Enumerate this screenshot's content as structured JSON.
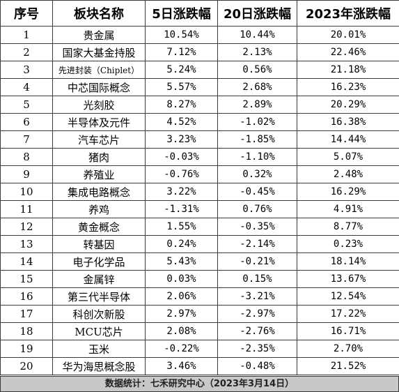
{
  "headers": [
    "序号",
    "板块名称",
    "5日涨跌幅",
    "20日涨跌幅",
    "2023年涨跌幅"
  ],
  "rows": [
    [
      "1",
      "贵金属",
      "10.54%",
      "10.44%",
      "20.01%"
    ],
    [
      "2",
      "国家大基金持股",
      "7.12%",
      "2.13%",
      "22.46%"
    ],
    [
      "3",
      "先进封装（Chiplet）",
      "5.24%",
      "0.56%",
      "21.18%"
    ],
    [
      "4",
      "中芯国际概念",
      "5.57%",
      "2.68%",
      "16.23%"
    ],
    [
      "5",
      "光刻胶",
      "8.27%",
      "2.89%",
      "20.29%"
    ],
    [
      "6",
      "半导体及元件",
      "4.52%",
      "-1.02%",
      "16.38%"
    ],
    [
      "7",
      "汽车芯片",
      "3.23%",
      "-1.85%",
      "14.44%"
    ],
    [
      "8",
      "猪肉",
      "-0.03%",
      "-1.10%",
      "5.07%"
    ],
    [
      "9",
      "养殖业",
      "-0.76%",
      "0.32%",
      "2.48%"
    ],
    [
      "10",
      "集成电路概念",
      "3.22%",
      "-0.45%",
      "16.29%"
    ],
    [
      "11",
      "养鸡",
      "-1.31%",
      "0.76%",
      "4.91%"
    ],
    [
      "12",
      "黄金概念",
      "1.55%",
      "-0.35%",
      "8.77%"
    ],
    [
      "13",
      "转基因",
      "0.24%",
      "-2.14%",
      "0.23%"
    ],
    [
      "14",
      "电子化学品",
      "5.43%",
      "-0.21%",
      "18.14%"
    ],
    [
      "15",
      "金属锌",
      "0.03%",
      "0.15%",
      "13.67%"
    ],
    [
      "16",
      "第三代半导体",
      "2.06%",
      "-3.21%",
      "12.54%"
    ],
    [
      "17",
      "科创次新股",
      "2.97%",
      "-2.97%",
      "17.22%"
    ],
    [
      "18",
      "MCU芯片",
      "2.08%",
      "-2.76%",
      "16.71%"
    ],
    [
      "19",
      "玉米",
      "-0.22%",
      "-2.35%",
      "2.70%"
    ],
    [
      "20",
      "华为海思概念股",
      "3.46%",
      "-0.48%",
      "21.52%"
    ]
  ],
  "footer": "数据统计：七禾研究中心（2023年3月14日）"
}
